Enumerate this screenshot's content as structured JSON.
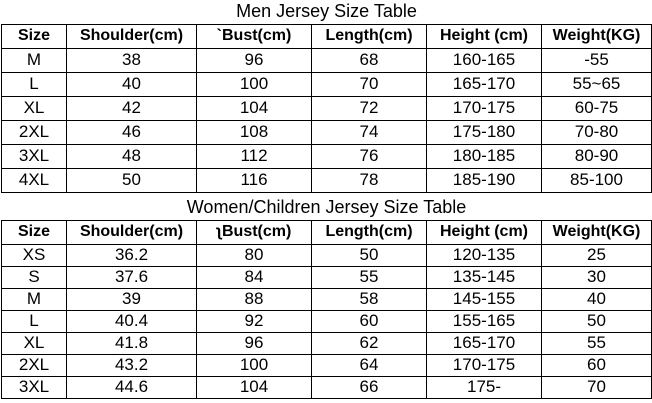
{
  "tables": [
    {
      "title": "Men Jersey Size Table",
      "header": [
        "Size",
        "Shoulder(cm)",
        "`Bust(cm)",
        "Length(cm)",
        "Height (cm)",
        "Weight(KG)"
      ],
      "rows": [
        [
          "M",
          "38",
          "96",
          "68",
          "160-165",
          "-55"
        ],
        [
          "L",
          "40",
          "100",
          "70",
          "165-170",
          "55~65"
        ],
        [
          "XL",
          "42",
          "104",
          "72",
          "170-175",
          "60-75"
        ],
        [
          "2XL",
          "46",
          "108",
          "74",
          "175-180",
          "70-80"
        ],
        [
          "3XL",
          "48",
          "112",
          "76",
          "180-185",
          "80-90"
        ],
        [
          "4XL",
          "50",
          "116",
          "78",
          "185-190",
          "85-100"
        ]
      ]
    },
    {
      "title": "Women/Children Jersey Size Table",
      "header": [
        "Size",
        "Shoulder(cm)",
        "ʅBust(cm)",
        "Length(cm)",
        "Height (cm)",
        "Weight(KG)"
      ],
      "rows": [
        [
          "XS",
          "36.2",
          "80",
          "50",
          "120-135",
          "25"
        ],
        [
          "S",
          "37.6",
          "84",
          "55",
          "135-145",
          "30"
        ],
        [
          "M",
          "39",
          "88",
          "58",
          "145-155",
          "40"
        ],
        [
          "L",
          "40.4",
          "92",
          "60",
          "155-165",
          "50"
        ],
        [
          "XL",
          "41.8",
          "96",
          "62",
          "165-170",
          "55"
        ],
        [
          "2XL",
          "43.2",
          "100",
          "64",
          "170-175",
          "60"
        ],
        [
          "3XL",
          "44.6",
          "104",
          "66",
          "175-",
          "70"
        ]
      ]
    }
  ]
}
